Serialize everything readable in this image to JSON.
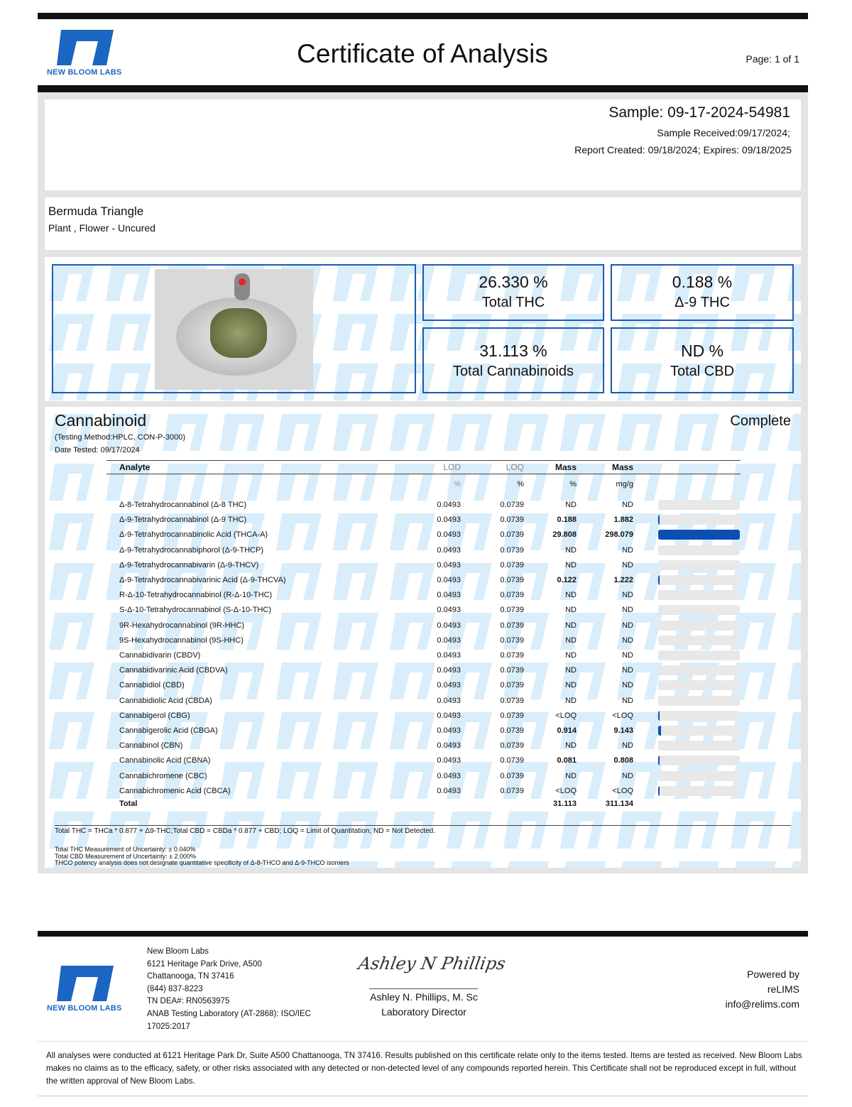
{
  "header": {
    "brand": "NEW BLOOM LABS",
    "title": "Certificate of Analysis",
    "page": "Page: 1 of 1"
  },
  "sample": {
    "id": "Sample: 09-17-2024-54981",
    "received": "Sample Received:09/17/2024;",
    "report": "Report Created: 09/18/2024; Expires: 09/18/2025"
  },
  "product": {
    "name": "Bermuda Triangle",
    "type": "Plant , Flower - Uncured"
  },
  "summary": [
    {
      "value": "26.330 %",
      "label": "Total THC"
    },
    {
      "value": "0.188 %",
      "label": "Δ-9 THC"
    },
    {
      "value": "31.113 %",
      "label": "Total Cannabinoids"
    },
    {
      "value": "ND %",
      "label": "Total CBD"
    }
  ],
  "cannabinoid": {
    "title": "Cannabinoid",
    "status": "Complete",
    "method": "(Testing Method:HPLC, CON-P-3000)",
    "date": "Date Tested: 09/17/2024",
    "columns": {
      "analyte": "Analyte",
      "lod": "LOD",
      "loq": "LOQ",
      "mass_pct": "Mass",
      "mass_mg": "Mass"
    },
    "units": {
      "lod": "%",
      "loq": "%",
      "mass_pct": "%",
      "mass_mg": "mg/g"
    },
    "rows": [
      {
        "name": "Δ-8-Tetrahydrocannabinol (Δ-8 THC)",
        "lod": "0.0493",
        "loq": "0.0739",
        "pct": "ND",
        "mg": "ND",
        "fraction": 0
      },
      {
        "name": "Δ-9-Tetrahydrocannabinol (Δ-9 THC)",
        "lod": "0.0493",
        "loq": "0.0739",
        "pct": "0.188",
        "mg": "1.882",
        "fraction": 0.0063
      },
      {
        "name": "Δ-9-Tetrahydrocannabinolic Acid (THCA-A)",
        "lod": "0.0493",
        "loq": "0.0739",
        "pct": "29.808",
        "mg": "298.079",
        "fraction": 1
      },
      {
        "name": "Δ-9-Tetrahydrocannabiphorol (Δ-9-THCP)",
        "lod": "0.0493",
        "loq": "0.0739",
        "pct": "ND",
        "mg": "ND",
        "fraction": 0
      },
      {
        "name": "Δ-9-Tetrahydrocannabivarin (Δ-9-THCV)",
        "lod": "0.0493",
        "loq": "0.0739",
        "pct": "ND",
        "mg": "ND",
        "fraction": 0
      },
      {
        "name": "Δ-9-Tetrahydrocannabivarinic Acid (Δ-9-THCVA)",
        "lod": "0.0493",
        "loq": "0.0739",
        "pct": "0.122",
        "mg": "1.222",
        "fraction": 0.0041
      },
      {
        "name": "R-Δ-10-Tetrahydrocannabinol (R-Δ-10-THC)",
        "lod": "0.0493",
        "loq": "0.0739",
        "pct": "ND",
        "mg": "ND",
        "fraction": 0
      },
      {
        "name": "S-Δ-10-Tetrahydrocannabinol (S-Δ-10-THC)",
        "lod": "0.0493",
        "loq": "0.0739",
        "pct": "ND",
        "mg": "ND",
        "fraction": 0
      },
      {
        "name": "9R-Hexahydrocannabinol (9R-HHC)",
        "lod": "0.0493",
        "loq": "0.0739",
        "pct": "ND",
        "mg": "ND",
        "fraction": 0
      },
      {
        "name": "9S-Hexahydrocannabinol (9S-HHC)",
        "lod": "0.0493",
        "loq": "0.0739",
        "pct": "ND",
        "mg": "ND",
        "fraction": 0
      },
      {
        "name": "Cannabidivarin (CBDV)",
        "lod": "0.0493",
        "loq": "0.0739",
        "pct": "ND",
        "mg": "ND",
        "fraction": 0
      },
      {
        "name": "Cannabidivarinic Acid (CBDVA)",
        "lod": "0.0493",
        "loq": "0.0739",
        "pct": "ND",
        "mg": "ND",
        "fraction": 0
      },
      {
        "name": "Cannabidiol (CBD)",
        "lod": "0.0493",
        "loq": "0.0739",
        "pct": "ND",
        "mg": "ND",
        "fraction": 0
      },
      {
        "name": "Cannabidiolic Acid (CBDA)",
        "lod": "0.0493",
        "loq": "0.0739",
        "pct": "ND",
        "mg": "ND",
        "fraction": 0
      },
      {
        "name": "Cannabigerol (CBG)",
        "lod": "0.0493",
        "loq": "0.0739",
        "pct": "<LOQ",
        "mg": "<LOQ",
        "fraction": 0.002
      },
      {
        "name": "Cannabigerolic Acid (CBGA)",
        "lod": "0.0493",
        "loq": "0.0739",
        "pct": "0.914",
        "mg": "9.143",
        "fraction": 0.0307
      },
      {
        "name": "Cannabinol (CBN)",
        "lod": "0.0493",
        "loq": "0.0739",
        "pct": "ND",
        "mg": "ND",
        "fraction": 0
      },
      {
        "name": "Cannabinolic Acid (CBNA)",
        "lod": "0.0493",
        "loq": "0.0739",
        "pct": "0.081",
        "mg": "0.808",
        "fraction": 0.0027
      },
      {
        "name": "Cannabichromene (CBC)",
        "lod": "0.0493",
        "loq": "0.0739",
        "pct": "ND",
        "mg": "ND",
        "fraction": 0
      },
      {
        "name": "Cannabichromenic Acid (CBCA)",
        "lod": "0.0493",
        "loq": "0.0739",
        "pct": "<LOQ",
        "mg": "<LOQ",
        "fraction": 0.002
      }
    ],
    "total": {
      "label": "Total",
      "pct": "31.113",
      "mg": "311.134"
    },
    "notes": [
      "Total THC = THCa * 0.877 + Δ9-THC;Total CBD = CBDa * 0.877 + CBD; LOQ = Limit of Quantitation; ND = Not Detected.",
      "Total THC Measurement of Uncertainty: ± 0.040%",
      "Total CBD Measurement of Uncertainty: ± 2.000%",
      "THCO potency analysis does not designate quantitative specificity of Δ-8-THCO and Δ-9-THCO isomers"
    ]
  },
  "footer": {
    "address": [
      "New Bloom Labs",
      "6121 Heritage Park Drive, A500",
      "Chattanooga, TN 37416",
      "(844) 837-8223",
      "TN DEA#: RN0563975",
      "ANAB Testing Laboratory (AT-2868): ISO/IEC",
      "17025:2017"
    ],
    "signature": "Ashley N Phillips",
    "signer": "Ashley N. Phillips, M. Sc",
    "signer_title": "Laboratory Director",
    "powered": [
      "Powered by",
      "reLIMS",
      "info@relims.com"
    ],
    "disclaimer": "All analyses were conducted at 6121 Heritage Park Dr, Suite A500 Chattanooga, TN 37416. Results published on this certificate relate only to the items tested. Items are tested as received. New Bloom Labs makes no claims as to the efficacy, safety, or other risks associated with any detected or non-detected level of any compounds reported herein. This Certificate shall not be reproduced except in full, without the written approval of New Bloom Labs."
  },
  "colors": {
    "brand": "#1a66c2",
    "bar": "#0b4fb3",
    "border": "#1c5bb0"
  }
}
